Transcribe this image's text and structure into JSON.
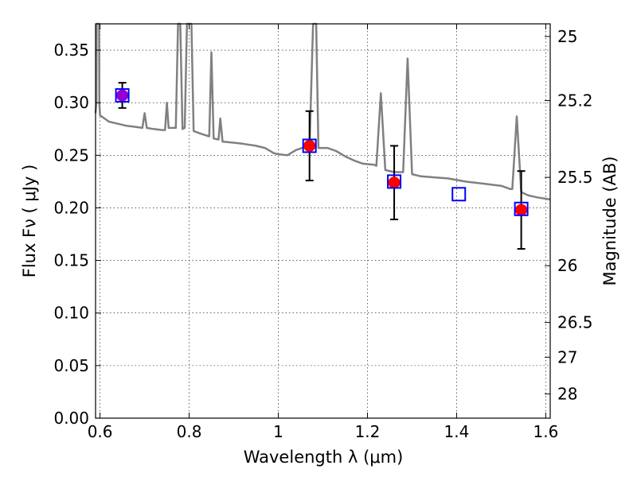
{
  "chart_data": {
    "type": "scatter",
    "xlabel": "Wavelength  λ (μm)",
    "ylabel": "Flux  Fν  ( μJy )",
    "y2label": "Magnitude (AB)",
    "xlim": [
      0.59,
      1.61
    ],
    "ylim": [
      0.0,
      0.375
    ],
    "grid": true,
    "x_ticks": [
      0.6,
      0.8,
      1.0,
      1.2,
      1.4,
      1.6
    ],
    "x_tick_labels": [
      "0.6",
      "0.8",
      "1",
      "1.2",
      "1.4",
      "1.6"
    ],
    "y_ticks": [
      0.0,
      0.05,
      0.1,
      0.15,
      0.2,
      0.25,
      0.3,
      0.35
    ],
    "y_tick_labels": [
      "0.00",
      "0.05",
      "0.10",
      "0.15",
      "0.20",
      "0.25",
      "0.30",
      "0.35"
    ],
    "y2_ticks": [
      {
        "flux": 0.363,
        "label": "25"
      },
      {
        "flux": 0.302,
        "label": "25.2"
      },
      {
        "flux": 0.229,
        "label": "25.5"
      },
      {
        "flux": 0.145,
        "label": "26"
      },
      {
        "flux": 0.091,
        "label": "26.5"
      },
      {
        "flux": 0.058,
        "label": "27"
      },
      {
        "flux": 0.023,
        "label": "28"
      }
    ],
    "colors": {
      "model": "#808080",
      "photometry_red": "#ff0000",
      "photometry_purple": "#9400d3",
      "model_box": "#0000ff",
      "errorbar": "#000000"
    },
    "observed_points": [
      {
        "x": 0.65,
        "y": 0.307,
        "err": 0.012,
        "color": "#9400d3"
      },
      {
        "x": 1.07,
        "y": 0.259,
        "err": 0.033,
        "color": "#ff0000"
      },
      {
        "x": 1.26,
        "y": 0.224,
        "err": 0.035,
        "color": "#ff0000"
      },
      {
        "x": 1.545,
        "y": 0.198,
        "err": 0.037,
        "color": "#ff0000"
      }
    ],
    "model_points": [
      {
        "x": 0.65,
        "y": 0.307
      },
      {
        "x": 1.07,
        "y": 0.259
      },
      {
        "x": 1.26,
        "y": 0.225
      },
      {
        "x": 1.405,
        "y": 0.213
      },
      {
        "x": 1.545,
        "y": 0.199
      }
    ],
    "model_spectrum": [
      [
        0.59,
        0.29
      ],
      [
        0.592,
        0.3
      ],
      [
        0.5925,
        0.38
      ],
      [
        0.598,
        0.38
      ],
      [
        0.5985,
        0.3
      ],
      [
        0.6,
        0.288
      ],
      [
        0.61,
        0.285
      ],
      [
        0.62,
        0.282
      ],
      [
        0.63,
        0.281
      ],
      [
        0.64,
        0.28
      ],
      [
        0.66,
        0.278
      ],
      [
        0.68,
        0.277
      ],
      [
        0.695,
        0.276
      ],
      [
        0.7,
        0.29
      ],
      [
        0.705,
        0.276
      ],
      [
        0.72,
        0.275
      ],
      [
        0.74,
        0.274
      ],
      [
        0.746,
        0.274
      ],
      [
        0.75,
        0.3
      ],
      [
        0.754,
        0.276
      ],
      [
        0.77,
        0.276
      ],
      [
        0.775,
        0.38
      ],
      [
        0.78,
        0.38
      ],
      [
        0.785,
        0.275
      ],
      [
        0.79,
        0.276
      ],
      [
        0.795,
        0.38
      ],
      [
        0.805,
        0.38
      ],
      [
        0.81,
        0.273
      ],
      [
        0.83,
        0.27
      ],
      [
        0.845,
        0.268
      ],
      [
        0.85,
        0.348
      ],
      [
        0.855,
        0.266
      ],
      [
        0.866,
        0.265
      ],
      [
        0.87,
        0.285
      ],
      [
        0.875,
        0.263
      ],
      [
        0.9,
        0.262
      ],
      [
        0.92,
        0.261
      ],
      [
        0.95,
        0.259
      ],
      [
        0.97,
        0.257
      ],
      [
        0.99,
        0.252
      ],
      [
        1.0,
        0.251
      ],
      [
        1.02,
        0.25
      ],
      [
        1.04,
        0.255
      ],
      [
        1.06,
        0.258
      ],
      [
        1.07,
        0.257
      ],
      [
        1.078,
        0.38
      ],
      [
        1.085,
        0.38
      ],
      [
        1.09,
        0.257
      ],
      [
        1.11,
        0.257
      ],
      [
        1.13,
        0.254
      ],
      [
        1.15,
        0.249
      ],
      [
        1.17,
        0.245
      ],
      [
        1.19,
        0.242
      ],
      [
        1.215,
        0.241
      ],
      [
        1.22,
        0.24
      ],
      [
        1.23,
        0.309
      ],
      [
        1.24,
        0.236
      ],
      [
        1.26,
        0.234
      ],
      [
        1.275,
        0.234
      ],
      [
        1.28,
        0.234
      ],
      [
        1.29,
        0.342
      ],
      [
        1.3,
        0.232
      ],
      [
        1.32,
        0.23
      ],
      [
        1.35,
        0.229
      ],
      [
        1.38,
        0.228
      ],
      [
        1.42,
        0.225
      ],
      [
        1.46,
        0.223
      ],
      [
        1.5,
        0.221
      ],
      [
        1.52,
        0.218
      ],
      [
        1.525,
        0.218
      ],
      [
        1.535,
        0.287
      ],
      [
        1.545,
        0.215
      ],
      [
        1.56,
        0.212
      ],
      [
        1.58,
        0.21
      ],
      [
        1.61,
        0.208
      ]
    ]
  }
}
